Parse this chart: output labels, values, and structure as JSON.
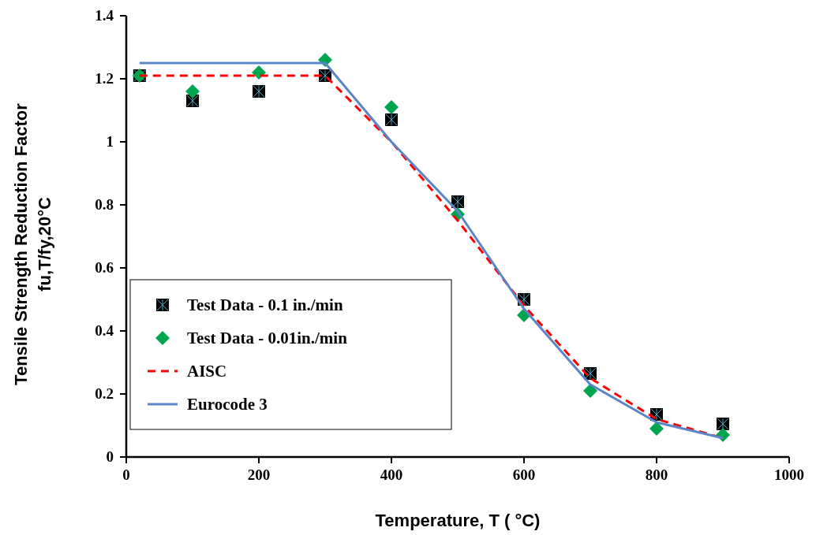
{
  "chart_data": {
    "type": "scatter",
    "xlabel": "Temperature, T ( °C)",
    "ylabel": "Tensile Strength Reduction Factor\nfu,T/fy,20°C",
    "xlim": [
      0,
      1000
    ],
    "ylim": [
      0,
      1.4
    ],
    "xticks": [
      0,
      200,
      400,
      600,
      800,
      1000
    ],
    "yticks": [
      0,
      0.2,
      0.4,
      0.6,
      0.8,
      1,
      1.2,
      1.4
    ],
    "grid": false,
    "legend": "bottom left",
    "x": [
      20,
      100,
      200,
      300,
      400,
      500,
      600,
      700,
      800,
      900
    ],
    "series": [
      {
        "name": "Test Data - 0.1 in./min",
        "marker": "square",
        "color": "#000000",
        "values": [
          1.21,
          1.13,
          1.16,
          1.21,
          1.07,
          0.81,
          0.5,
          0.265,
          0.135,
          0.105
        ]
      },
      {
        "name": "Test Data - 0.01in./min",
        "marker": "diamond",
        "color": "#00a550",
        "values": [
          1.21,
          1.16,
          1.22,
          1.26,
          1.11,
          0.77,
          0.45,
          0.21,
          0.09,
          0.07
        ]
      },
      {
        "name": "AISC",
        "type": "line",
        "marker": "none",
        "line_style": "dashed",
        "color": "#ff0000",
        "x": [
          20,
          300,
          400,
          500,
          600,
          700,
          800,
          900
        ],
        "values": [
          1.21,
          1.21,
          1.0,
          0.75,
          0.48,
          0.25,
          0.12,
          0.06
        ]
      },
      {
        "name": "Eurocode 3",
        "type": "line",
        "marker": "none",
        "line_style": "solid",
        "color": "#5b85c6",
        "x": [
          20,
          300,
          400,
          500,
          600,
          700,
          800,
          900
        ],
        "values": [
          1.25,
          1.25,
          1.0,
          0.78,
          0.47,
          0.23,
          0.11,
          0.06
        ]
      }
    ]
  }
}
